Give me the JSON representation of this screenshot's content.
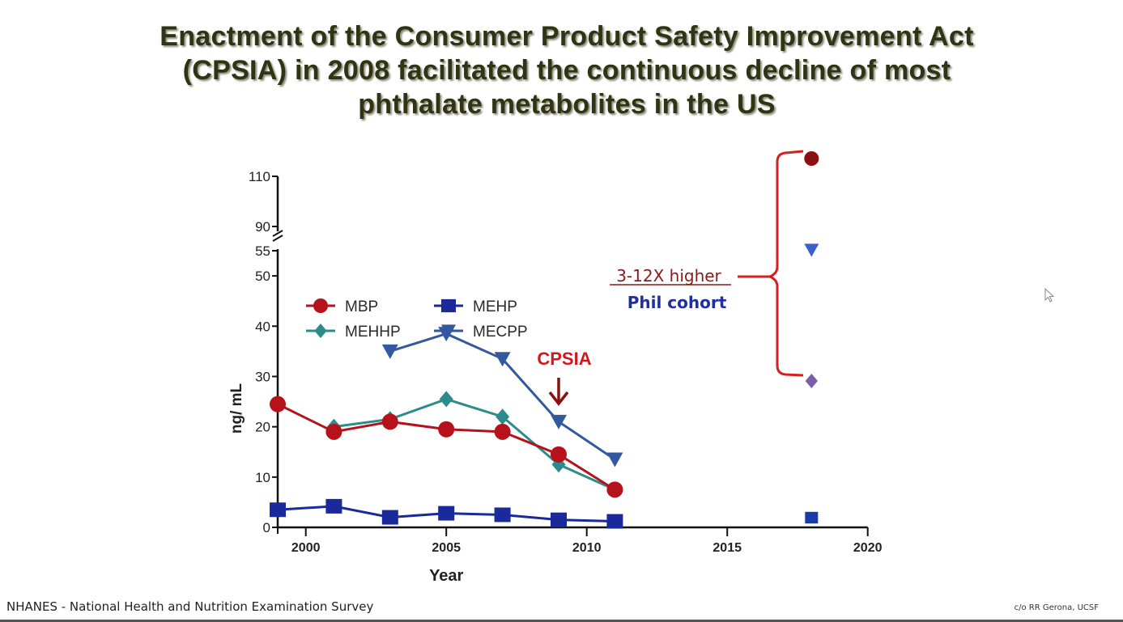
{
  "slide": {
    "title_lines": [
      "Enactment of the Consumer Product Safety Improvement Act",
      "(CPSIA) in 2008 facilitated the continuous decline of most",
      "phthalate metabolites in the US"
    ],
    "footer_left": "NHANES - National Health and Nutrition Examination Survey",
    "footer_right": "c/o RR Gerona, UCSF"
  },
  "chart_data": {
    "type": "line",
    "title": "",
    "xlabel": "Year",
    "ylabel": "ng/ mL",
    "xlim": [
      1999,
      2020
    ],
    "x_ticks": [
      2000,
      2005,
      2010,
      2015,
      2020
    ],
    "x_tick_labels": [
      "2000",
      "2005",
      "2010",
      "2015",
      "2020"
    ],
    "y_axis_broken": true,
    "ylim_lower": [
      0,
      55
    ],
    "ylim_upper": [
      90,
      110
    ],
    "y_ticks_lower": [
      0,
      10,
      20,
      30,
      40,
      50,
      55
    ],
    "y_ticks_upper": [
      90,
      110
    ],
    "y_tick_labels": [
      "0",
      "10",
      "20",
      "30",
      "40",
      "50",
      "55",
      "90",
      "110"
    ],
    "grid": false,
    "legend_position": "upper-left",
    "series": [
      {
        "name": "MBP",
        "marker": "circle",
        "color": "#b5121b",
        "x": [
          1999,
          2001,
          2003,
          2005,
          2007,
          2009,
          2011
        ],
        "values": [
          24.5,
          19,
          21,
          19.5,
          19,
          14.5,
          7.5
        ]
      },
      {
        "name": "MEHHP",
        "marker": "diamond",
        "color": "#2e8b8b",
        "x": [
          2001,
          2003,
          2005,
          2007,
          2009,
          2011
        ],
        "values": [
          20,
          21.5,
          25.5,
          22,
          12.5,
          7.5
        ]
      },
      {
        "name": "MEHP",
        "marker": "square",
        "color": "#1a2a9a",
        "x": [
          1999,
          2001,
          2003,
          2005,
          2007,
          2009,
          2011
        ],
        "values": [
          3.5,
          4.2,
          2,
          2.8,
          2.5,
          1.5,
          1.2
        ]
      },
      {
        "name": "MECPP",
        "marker": "triangle-down",
        "color": "#34589e",
        "x": [
          2003,
          2005,
          2007,
          2009,
          2011
        ],
        "values": [
          35,
          38.5,
          33.5,
          21,
          13.5
        ]
      }
    ],
    "phil_cohort": {
      "label": "Phil cohort",
      "x": 2018,
      "points": [
        {
          "name": "MBP",
          "marker": "circle",
          "color": "#8b1010",
          "value": 117
        },
        {
          "name": "MECPP",
          "marker": "triangle-down",
          "color": "#3a5fcd",
          "value": 55
        },
        {
          "name": "MEHHP",
          "marker": "diamond",
          "color": "#7b5ea7",
          "value": 29
        },
        {
          "name": "MEHP",
          "marker": "square",
          "color": "#1a3aa8",
          "value": 2
        }
      ]
    },
    "annotations": [
      {
        "text": "CPSIA",
        "x": 2009,
        "color": "#d0191f",
        "arrow": "down"
      },
      {
        "text": "3-12X higher",
        "color": "#8b1a1a",
        "underline": true
      },
      {
        "text": "Phil cohort",
        "color": "#1f2f9f"
      }
    ]
  }
}
